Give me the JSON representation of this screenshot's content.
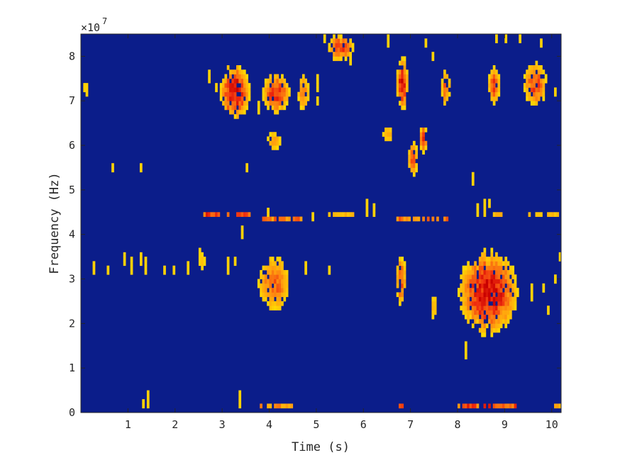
{
  "chart_data": {
    "type": "heatmap",
    "xlabel": "Time (s)",
    "ylabel": "Frequency (Hz)",
    "y_exponent_label": "×10",
    "y_exponent_power": "7",
    "xlim": [
      0,
      10.2
    ],
    "ylim": [
      0,
      8.5
    ],
    "y_scale_factor": 10000000,
    "x_ticks": [
      1,
      2,
      3,
      4,
      5,
      6,
      7,
      8,
      9,
      10
    ],
    "y_ticks": [
      0,
      1,
      2,
      3,
      4,
      5,
      6,
      7,
      8
    ],
    "grid": false,
    "colors": {
      "background": "#0b1d8a",
      "low": "#ffe400",
      "mid": "#ff9a10",
      "high": "#f02d10",
      "peak": "#c80000"
    },
    "blobs": [
      {
        "t0": 2.95,
        "t1": 3.6,
        "f0": 6.55,
        "f1": 7.85,
        "i": 0.95
      },
      {
        "t0": 3.85,
        "t1": 4.45,
        "f0": 6.75,
        "f1": 7.6,
        "i": 0.8
      },
      {
        "t0": 4.6,
        "t1": 4.85,
        "f0": 6.8,
        "f1": 7.6,
        "i": 0.5
      },
      {
        "t0": 5.25,
        "t1": 5.8,
        "f0": 7.9,
        "f1": 8.5,
        "i": 0.75
      },
      {
        "t0": 6.7,
        "t1": 6.95,
        "f0": 6.85,
        "f1": 7.95,
        "i": 0.9
      },
      {
        "t0": 7.65,
        "t1": 7.85,
        "f0": 6.9,
        "f1": 7.7,
        "i": 0.6
      },
      {
        "t0": 8.65,
        "t1": 8.9,
        "f0": 6.9,
        "f1": 7.8,
        "i": 0.7
      },
      {
        "t0": 9.4,
        "t1": 9.9,
        "f0": 6.9,
        "f1": 7.85,
        "i": 0.7
      },
      {
        "t0": 3.95,
        "t1": 4.25,
        "f0": 5.9,
        "f1": 6.3,
        "i": 0.4
      },
      {
        "t0": 6.4,
        "t1": 6.65,
        "f0": 6.05,
        "f1": 6.45,
        "i": 0.3
      },
      {
        "t0": 6.95,
        "t1": 7.15,
        "f0": 5.3,
        "f1": 6.1,
        "i": 0.65
      },
      {
        "t0": 7.2,
        "t1": 7.35,
        "f0": 5.8,
        "f1": 6.5,
        "i": 0.85
      },
      {
        "t0": 3.75,
        "t1": 4.45,
        "f0": 2.3,
        "f1": 3.5,
        "i": 0.6
      },
      {
        "t0": 6.7,
        "t1": 6.9,
        "f0": 2.4,
        "f1": 3.55,
        "i": 0.75
      },
      {
        "t0": 7.45,
        "t1": 7.55,
        "f0": 2.0,
        "f1": 2.7,
        "i": 0.3
      },
      {
        "t0": 8.0,
        "t1": 9.3,
        "f0": 1.8,
        "f1": 3.6,
        "i": 0.95
      },
      {
        "t0": 2.5,
        "t1": 2.65,
        "f0": 3.2,
        "f1": 3.6,
        "i": 0.2
      }
    ],
    "streaks": [
      {
        "t0": 2.55,
        "t1": 3.6,
        "f": 4.4,
        "i": 0.85
      },
      {
        "t0": 3.85,
        "t1": 4.7,
        "f": 4.35,
        "i": 0.6
      },
      {
        "t0": 5.25,
        "t1": 5.8,
        "f": 4.45,
        "i": 0.3
      },
      {
        "t0": 6.6,
        "t1": 7.8,
        "f": 4.35,
        "i": 0.6
      },
      {
        "t0": 8.6,
        "t1": 8.95,
        "f": 4.4,
        "i": 0.3
      },
      {
        "t0": 9.5,
        "t1": 10.15,
        "f": 4.4,
        "i": 0.25
      },
      {
        "t0": 3.8,
        "t1": 4.55,
        "f": 0.15,
        "i": 0.5
      },
      {
        "t0": 6.7,
        "t1": 6.85,
        "f": 0.15,
        "i": 0.8
      },
      {
        "t0": 8.0,
        "t1": 9.3,
        "f": 0.15,
        "i": 0.8
      },
      {
        "t0": 10.05,
        "t1": 10.2,
        "f": 0.15,
        "i": 0.4
      }
    ],
    "specks": [
      [
        0.05,
        7.3
      ],
      [
        0.15,
        7.2
      ],
      [
        0.65,
        5.6
      ],
      [
        1.25,
        5.5
      ],
      [
        0.3,
        3.3
      ],
      [
        0.6,
        3.3
      ],
      [
        0.95,
        3.4
      ],
      [
        1.05,
        3.3
      ],
      [
        1.25,
        3.4
      ],
      [
        1.4,
        3.3
      ],
      [
        1.75,
        3.3
      ],
      [
        1.95,
        3.3
      ],
      [
        2.25,
        3.3
      ],
      [
        2.5,
        3.5
      ],
      [
        3.1,
        3.3
      ],
      [
        3.3,
        3.4
      ],
      [
        3.4,
        4.0
      ],
      [
        3.55,
        5.6
      ],
      [
        3.8,
        6.8
      ],
      [
        4.75,
        3.3
      ],
      [
        5.3,
        3.3
      ],
      [
        5.0,
        7.3
      ],
      [
        5.0,
        7.1
      ],
      [
        5.15,
        8.4
      ],
      [
        6.5,
        8.3
      ],
      [
        7.3,
        8.3
      ],
      [
        7.45,
        8.1
      ],
      [
        8.35,
        5.3
      ],
      [
        8.4,
        4.6
      ],
      [
        8.55,
        4.5
      ],
      [
        8.65,
        4.7
      ],
      [
        8.85,
        8.4
      ],
      [
        9.0,
        8.4
      ],
      [
        9.3,
        8.4
      ],
      [
        9.75,
        8.3
      ],
      [
        9.9,
        2.4
      ],
      [
        10.05,
        7.2
      ],
      [
        10.1,
        3.0
      ],
      [
        10.15,
        3.5
      ],
      [
        9.6,
        2.6
      ],
      [
        9.8,
        2.9
      ],
      [
        8.2,
        1.4
      ],
      [
        5.7,
        7.9
      ],
      [
        5.5,
        8.1
      ],
      [
        1.3,
        0.2
      ],
      [
        1.45,
        0.2
      ],
      [
        3.35,
        0.25
      ],
      [
        4.9,
        4.45
      ],
      [
        6.1,
        4.5
      ],
      [
        6.2,
        4.5
      ],
      [
        3.95,
        4.45
      ],
      [
        2.85,
        7.3
      ],
      [
        2.7,
        7.5
      ]
    ]
  }
}
